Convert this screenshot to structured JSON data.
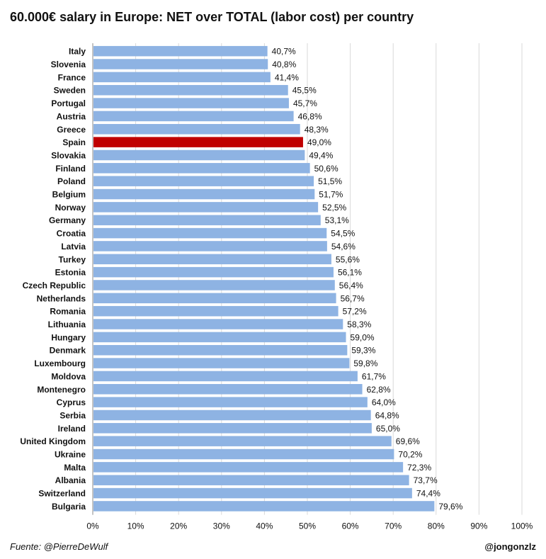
{
  "chart_data": {
    "type": "bar",
    "orientation": "horizontal",
    "title": "60.000€ salary in Europe: NET over TOTAL (labor cost) per country",
    "categories": [
      "Italy",
      "Slovenia",
      "France",
      "Sweden",
      "Portugal",
      "Austria",
      "Greece",
      "Spain",
      "Slovakia",
      "Finland",
      "Poland",
      "Belgium",
      "Norway",
      "Germany",
      "Croatia",
      "Latvia",
      "Turkey",
      "Estonia",
      "Czech Republic",
      "Netherlands",
      "Romania",
      "Lithuania",
      "Hungary",
      "Denmark",
      "Luxembourg",
      "Moldova",
      "Montenegro",
      "Cyprus",
      "Serbia",
      "Ireland",
      "United Kingdom",
      "Ukraine",
      "Malta",
      "Albania",
      "Switzerland",
      "Bulgaria"
    ],
    "values": [
      40.7,
      40.8,
      41.4,
      45.5,
      45.7,
      46.8,
      48.3,
      49.0,
      49.4,
      50.6,
      51.5,
      51.7,
      52.5,
      53.1,
      54.5,
      54.6,
      55.6,
      56.1,
      56.4,
      56.7,
      57.2,
      58.3,
      59.0,
      59.3,
      59.8,
      61.7,
      62.8,
      64.0,
      64.8,
      65.0,
      69.6,
      70.2,
      72.3,
      73.7,
      74.4,
      79.6
    ],
    "value_labels": [
      "40,7%",
      "40,8%",
      "41,4%",
      "45,5%",
      "45,7%",
      "46,8%",
      "48,3%",
      "49,0%",
      "49,4%",
      "50,6%",
      "51,5%",
      "51,7%",
      "52,5%",
      "53,1%",
      "54,5%",
      "54,6%",
      "55,6%",
      "56,1%",
      "56,4%",
      "56,7%",
      "57,2%",
      "58,3%",
      "59,0%",
      "59,3%",
      "59,8%",
      "61,7%",
      "62,8%",
      "64,0%",
      "64,8%",
      "65,0%",
      "69,6%",
      "70,2%",
      "72,3%",
      "73,7%",
      "74,4%",
      "79,6%"
    ],
    "xlim": [
      0,
      100
    ],
    "xticks": [
      "0%",
      "10%",
      "20%",
      "30%",
      "40%",
      "50%",
      "60%",
      "70%",
      "80%",
      "90%",
      "100%"
    ],
    "highlight": "Spain",
    "colors": {
      "bar": "#8EB3E3",
      "highlight": "#C00000",
      "grid": "#D9D9D9"
    },
    "grid": true
  },
  "footer": {
    "source": "Fuente: @PierreDeWulf",
    "credit": "@jongonzlz"
  }
}
